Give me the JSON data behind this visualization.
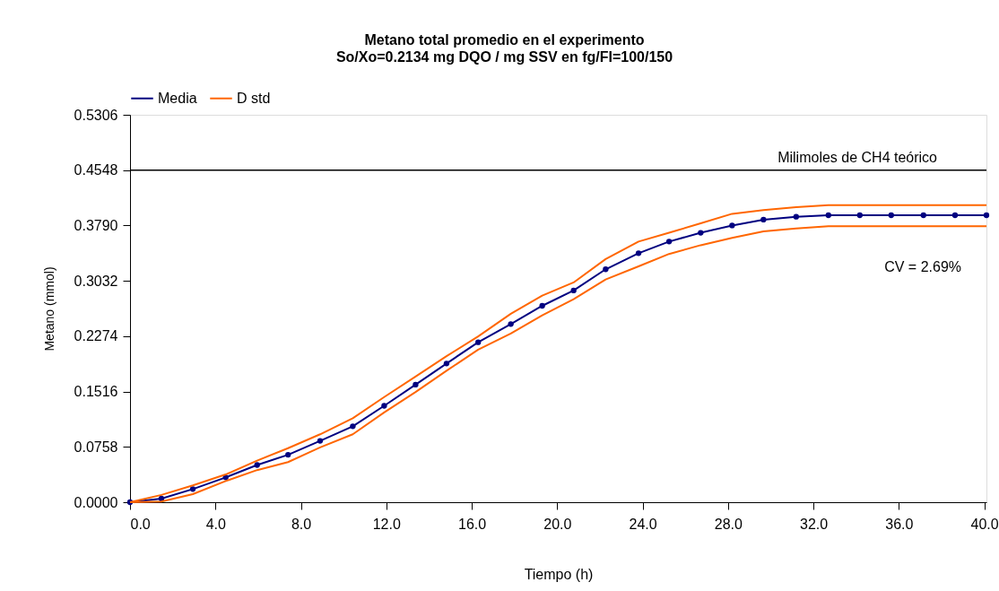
{
  "chart_data": {
    "type": "line",
    "title": "Metano total promedio en el experimento",
    "subtitle": "So/Xo=0.2134 mg DQO / mg SSV en fg/FI=100/150",
    "xlabel": "Tiempo (h)",
    "ylabel": "Metano (mmol)",
    "x": [
      0,
      1.47,
      2.94,
      4.48,
      5.95,
      7.4,
      8.9,
      10.43,
      11.9,
      13.37,
      14.82,
      16.3,
      17.83,
      19.3,
      20.77,
      22.27,
      23.81,
      25.24,
      26.72,
      28.19,
      29.66,
      31.19,
      32.7,
      34.17,
      35.64,
      37.15,
      38.63,
      40.1
    ],
    "series": [
      {
        "name": "Media",
        "color": "#000080",
        "marker": "circle",
        "values": [
          0,
          0.005,
          0.018,
          0.034,
          0.051,
          0.065,
          0.084,
          0.104,
          0.132,
          0.161,
          0.19,
          0.219,
          0.244,
          0.269,
          0.29,
          0.319,
          0.341,
          0.357,
          0.369,
          0.379,
          0.387,
          0.391,
          0.393,
          0.393,
          0.393,
          0.393,
          0.393,
          0.393
        ]
      },
      {
        "name": "D std",
        "color": "#ff6600",
        "marker": "none",
        "values": [
          0,
          0.01,
          0.023,
          0.038,
          0.057,
          0.074,
          0.093,
          0.115,
          0.144,
          0.172,
          0.2,
          0.227,
          0.258,
          0.283,
          0.301,
          0.333,
          0.357,
          0.369,
          0.382,
          0.395,
          0.4,
          0.404,
          0.407,
          0.407,
          0.407,
          0.407,
          0.407,
          0.407
        ]
      },
      {
        "color": "#ff6600",
        "marker": "none",
        "values": [
          0,
          0.001,
          0.011,
          0.029,
          0.044,
          0.055,
          0.075,
          0.093,
          0.123,
          0.151,
          0.18,
          0.209,
          0.231,
          0.256,
          0.278,
          0.305,
          0.323,
          0.34,
          0.352,
          0.362,
          0.371,
          0.375,
          0.378,
          0.378,
          0.378,
          0.378,
          0.378,
          0.378
        ]
      }
    ],
    "xlim": [
      0,
      40.1
    ],
    "ylim": [
      0,
      0.5306
    ],
    "xticks": [
      {
        "value": 0,
        "label": "0.0"
      },
      {
        "value": 4,
        "label": "4.0"
      },
      {
        "value": 8,
        "label": "8.0"
      },
      {
        "value": 12,
        "label": "12.0"
      },
      {
        "value": 16,
        "label": "16.0"
      },
      {
        "value": 20,
        "label": "20.0"
      },
      {
        "value": 24,
        "label": "24.0"
      },
      {
        "value": 28,
        "label": "28.0"
      },
      {
        "value": 32,
        "label": "32.0"
      },
      {
        "value": 36,
        "label": "36.0"
      },
      {
        "value": 40,
        "label": "40.0"
      }
    ],
    "yticks": [
      {
        "value": 0,
        "label": "0.0000"
      },
      0.0758,
      0.1516,
      0.2274,
      0.3032,
      {
        "value": 0.379,
        "label": "0.3790"
      },
      0.4548,
      0.5306
    ],
    "ref_lines": [
      {
        "axis": "y",
        "value": 0.4548,
        "label": "Milimoles de CH4 teórico",
        "color": "#000000"
      }
    ],
    "annotations": [
      "CV = 2.69%"
    ],
    "legend": "top",
    "grid": false
  }
}
